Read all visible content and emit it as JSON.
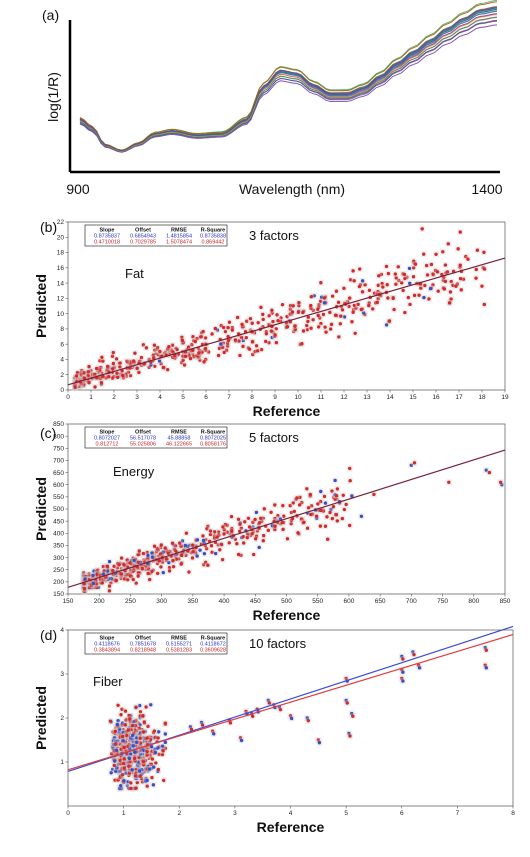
{
  "colors": {
    "point_red": "#d42a2a",
    "point_blue": "#3a4fc4",
    "fit_line": "#7a2036",
    "fit_red": "#e23b3b",
    "fit_blue": "#3b4bd8",
    "stats_blue": "#2233cc",
    "stats_red": "#cc2222"
  },
  "chart_data": [
    {
      "panel": "(a)",
      "type": "line",
      "xlabel": "Wavelength (nm)",
      "ylabel": "log(1/R)",
      "xlim": [
        900,
        1400
      ],
      "x_ticks": [
        "900",
        "1400"
      ],
      "spectrum_profile": {
        "x": [
          900,
          915,
          930,
          950,
          970,
          990,
          1010,
          1040,
          1070,
          1100,
          1120,
          1140,
          1160,
          1180,
          1200,
          1220,
          1240,
          1260,
          1280,
          1300,
          1320,
          1340,
          1360,
          1380,
          1400
        ],
        "y": [
          0.32,
          0.26,
          0.14,
          0.1,
          0.15,
          0.22,
          0.24,
          0.21,
          0.22,
          0.32,
          0.55,
          0.66,
          0.64,
          0.56,
          0.5,
          0.5,
          0.54,
          0.62,
          0.71,
          0.79,
          0.87,
          0.95,
          1.02,
          1.08,
          1.1
        ],
        "curve_count": 26
      }
    },
    {
      "panel": "(b)",
      "type": "scatter",
      "annotation": "Fat",
      "factors_label": "3 factors",
      "xlabel": "Reference",
      "ylabel": "Predicted",
      "xlim": [
        0,
        19
      ],
      "ylim": [
        0,
        22
      ],
      "x_ticks": [
        "0",
        "1",
        "2",
        "3",
        "4",
        "5",
        "6",
        "7",
        "8",
        "9",
        "10",
        "11",
        "12",
        "13",
        "14",
        "15",
        "16",
        "17",
        "18",
        "19"
      ],
      "y_ticks": [
        "0",
        "2",
        "4",
        "6",
        "8",
        "10",
        "12",
        "14",
        "16",
        "18",
        "20",
        "22"
      ],
      "stats_headers": [
        "Slope",
        "Offset",
        "RMSE",
        "R-Square"
      ],
      "stats_rows": [
        {
          "values": [
            "0.8735837",
            "0.6854943",
            "1.4815854",
            "0.8735838"
          ]
        },
        {
          "values": [
            "0.4710018",
            "0.7029785",
            "1.5078474",
            "0.869442"
          ]
        }
      ],
      "fit_lines": [
        {
          "slope": 0.8736,
          "offset": 0.6855
        }
      ],
      "point_count": 560,
      "point_spread": {
        "x_range": [
          0.3,
          18.2
        ],
        "residual_sd": 1.5
      }
    },
    {
      "panel": "(c)",
      "type": "scatter",
      "annotation": "Energy",
      "factors_label": "5 factors",
      "xlabel": "Reference",
      "ylabel": "Predicted",
      "xlim": [
        150,
        850
      ],
      "ylim": [
        150,
        850
      ],
      "x_ticks": [
        "150",
        "200",
        "250",
        "300",
        "350",
        "400",
        "450",
        "500",
        "550",
        "600",
        "650",
        "700",
        "750",
        "800",
        "850"
      ],
      "y_ticks": [
        "150",
        "200",
        "250",
        "300",
        "350",
        "400",
        "450",
        "500",
        "550",
        "600",
        "650",
        "700",
        "750",
        "800",
        "850"
      ],
      "stats_headers": [
        "Slope",
        "Offset",
        "RMSE",
        "R-Square"
      ],
      "stats_rows": [
        {
          "values": [
            "0.8072027",
            "56.517078",
            "45.88858",
            "0.8072025"
          ]
        },
        {
          "values": [
            "0.812712",
            "55.025806",
            "46.122665",
            "0.8058176"
          ]
        }
      ],
      "fit_lines": [
        {
          "slope": 0.8072,
          "offset": 56.52
        }
      ],
      "point_count": 600,
      "point_spread": {
        "x_range": [
          175,
          845
        ],
        "residual_sd": 45
      }
    },
    {
      "panel": "(d)",
      "type": "scatter",
      "annotation": "Fiber",
      "factors_label": "10 factors",
      "xlabel": "Reference",
      "ylabel": "Predicted",
      "xlim": [
        0,
        8
      ],
      "ylim": [
        0,
        4
      ],
      "x_ticks": [
        "0",
        "1",
        "2",
        "3",
        "4",
        "5",
        "6",
        "7",
        "8"
      ],
      "y_ticks": [
        "1",
        "2",
        "3",
        "4"
      ],
      "stats_headers": [
        "Slope",
        "Offset",
        "RMSE",
        "R-Square"
      ],
      "stats_rows": [
        {
          "values": [
            "0.4118676",
            "0.7851678",
            "0.5155271",
            "0.4118672"
          ]
        },
        {
          "values": [
            "0.3843894",
            "0.8218948",
            "0.5381283",
            "0.3609628"
          ]
        }
      ],
      "fit_lines": [
        {
          "slope": 0.4119,
          "offset": 0.7852
        },
        {
          "slope": 0.3844,
          "offset": 0.8219
        }
      ],
      "point_count": 650,
      "point_spread": {
        "cluster_x": [
          0.7,
          1.8
        ],
        "cluster_y": [
          0.4,
          2.3
        ],
        "outliers_x": [
          2.3,
          7.6
        ]
      }
    }
  ]
}
